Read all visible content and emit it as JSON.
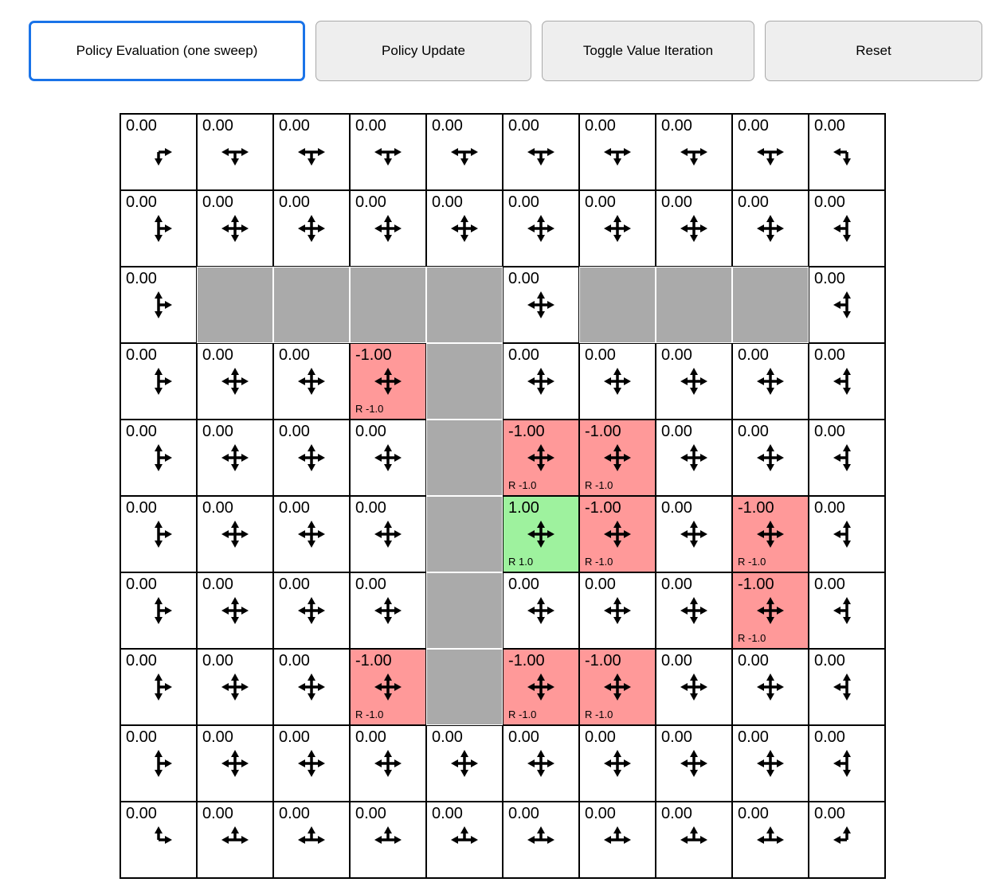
{
  "toolbar": {
    "buttons": [
      {
        "label": "Policy Evaluation (one sweep)",
        "active": true
      },
      {
        "label": "Policy Update",
        "active": false
      },
      {
        "label": "Toggle Value Iteration",
        "active": false
      },
      {
        "label": "Reset",
        "active": false
      }
    ]
  },
  "colors": {
    "accent": "#1a73e8",
    "wall": "#aaaaaa",
    "negative": "#ff9999",
    "positive": "#9ef29e",
    "arrow": "#000000"
  },
  "grid": {
    "rows": 10,
    "cols": 10,
    "cells": [
      [
        {
          "value": "0.00",
          "type": "normal",
          "dirs": "RD"
        },
        {
          "value": "0.00",
          "type": "normal",
          "dirs": "LRD"
        },
        {
          "value": "0.00",
          "type": "normal",
          "dirs": "LRD"
        },
        {
          "value": "0.00",
          "type": "normal",
          "dirs": "LRD"
        },
        {
          "value": "0.00",
          "type": "normal",
          "dirs": "LRD"
        },
        {
          "value": "0.00",
          "type": "normal",
          "dirs": "LRD"
        },
        {
          "value": "0.00",
          "type": "normal",
          "dirs": "LRD"
        },
        {
          "value": "0.00",
          "type": "normal",
          "dirs": "LRD"
        },
        {
          "value": "0.00",
          "type": "normal",
          "dirs": "LRD"
        },
        {
          "value": "0.00",
          "type": "normal",
          "dirs": "LD"
        }
      ],
      [
        {
          "value": "0.00",
          "type": "normal",
          "dirs": "URD"
        },
        {
          "value": "0.00",
          "type": "normal",
          "dirs": "UDLR"
        },
        {
          "value": "0.00",
          "type": "normal",
          "dirs": "UDLR"
        },
        {
          "value": "0.00",
          "type": "normal",
          "dirs": "UDLR"
        },
        {
          "value": "0.00",
          "type": "normal",
          "dirs": "UDLR"
        },
        {
          "value": "0.00",
          "type": "normal",
          "dirs": "UDLR"
        },
        {
          "value": "0.00",
          "type": "normal",
          "dirs": "UDLR"
        },
        {
          "value": "0.00",
          "type": "normal",
          "dirs": "UDLR"
        },
        {
          "value": "0.00",
          "type": "normal",
          "dirs": "UDLR"
        },
        {
          "value": "0.00",
          "type": "normal",
          "dirs": "ULD"
        }
      ],
      [
        {
          "value": "0.00",
          "type": "normal",
          "dirs": "URD"
        },
        {
          "type": "wall"
        },
        {
          "type": "wall"
        },
        {
          "type": "wall"
        },
        {
          "type": "wall"
        },
        {
          "value": "0.00",
          "type": "normal",
          "dirs": "UDLR"
        },
        {
          "type": "wall"
        },
        {
          "type": "wall"
        },
        {
          "type": "wall"
        },
        {
          "value": "0.00",
          "type": "normal",
          "dirs": "ULD"
        }
      ],
      [
        {
          "value": "0.00",
          "type": "normal",
          "dirs": "URD"
        },
        {
          "value": "0.00",
          "type": "normal",
          "dirs": "UDLR"
        },
        {
          "value": "0.00",
          "type": "normal",
          "dirs": "UDLR"
        },
        {
          "value": "-1.00",
          "type": "negative",
          "reward": "R -1.0",
          "dirs": "UDLR"
        },
        {
          "type": "wall"
        },
        {
          "value": "0.00",
          "type": "normal",
          "dirs": "UDLR"
        },
        {
          "value": "0.00",
          "type": "normal",
          "dirs": "UDLR"
        },
        {
          "value": "0.00",
          "type": "normal",
          "dirs": "UDLR"
        },
        {
          "value": "0.00",
          "type": "normal",
          "dirs": "UDLR"
        },
        {
          "value": "0.00",
          "type": "normal",
          "dirs": "ULD"
        }
      ],
      [
        {
          "value": "0.00",
          "type": "normal",
          "dirs": "URD"
        },
        {
          "value": "0.00",
          "type": "normal",
          "dirs": "UDLR"
        },
        {
          "value": "0.00",
          "type": "normal",
          "dirs": "UDLR"
        },
        {
          "value": "0.00",
          "type": "normal",
          "dirs": "UDLR"
        },
        {
          "type": "wall"
        },
        {
          "value": "-1.00",
          "type": "negative",
          "reward": "R -1.0",
          "dirs": "UDLR"
        },
        {
          "value": "-1.00",
          "type": "negative",
          "reward": "R -1.0",
          "dirs": "UDLR"
        },
        {
          "value": "0.00",
          "type": "normal",
          "dirs": "UDLR"
        },
        {
          "value": "0.00",
          "type": "normal",
          "dirs": "UDLR"
        },
        {
          "value": "0.00",
          "type": "normal",
          "dirs": "ULD"
        }
      ],
      [
        {
          "value": "0.00",
          "type": "normal",
          "dirs": "URD"
        },
        {
          "value": "0.00",
          "type": "normal",
          "dirs": "UDLR"
        },
        {
          "value": "0.00",
          "type": "normal",
          "dirs": "UDLR"
        },
        {
          "value": "0.00",
          "type": "normal",
          "dirs": "UDLR"
        },
        {
          "type": "wall"
        },
        {
          "value": "1.00",
          "type": "positive",
          "reward": "R 1.0",
          "dirs": "UDLR"
        },
        {
          "value": "-1.00",
          "type": "negative",
          "reward": "R -1.0",
          "dirs": "UDLR"
        },
        {
          "value": "0.00",
          "type": "normal",
          "dirs": "UDLR"
        },
        {
          "value": "-1.00",
          "type": "negative",
          "reward": "R -1.0",
          "dirs": "UDLR"
        },
        {
          "value": "0.00",
          "type": "normal",
          "dirs": "ULD"
        }
      ],
      [
        {
          "value": "0.00",
          "type": "normal",
          "dirs": "URD"
        },
        {
          "value": "0.00",
          "type": "normal",
          "dirs": "UDLR"
        },
        {
          "value": "0.00",
          "type": "normal",
          "dirs": "UDLR"
        },
        {
          "value": "0.00",
          "type": "normal",
          "dirs": "UDLR"
        },
        {
          "type": "wall"
        },
        {
          "value": "0.00",
          "type": "normal",
          "dirs": "UDLR"
        },
        {
          "value": "0.00",
          "type": "normal",
          "dirs": "UDLR"
        },
        {
          "value": "0.00",
          "type": "normal",
          "dirs": "UDLR"
        },
        {
          "value": "-1.00",
          "type": "negative",
          "reward": "R -1.0",
          "dirs": "UDLR"
        },
        {
          "value": "0.00",
          "type": "normal",
          "dirs": "ULD"
        }
      ],
      [
        {
          "value": "0.00",
          "type": "normal",
          "dirs": "URD"
        },
        {
          "value": "0.00",
          "type": "normal",
          "dirs": "UDLR"
        },
        {
          "value": "0.00",
          "type": "normal",
          "dirs": "UDLR"
        },
        {
          "value": "-1.00",
          "type": "negative",
          "reward": "R -1.0",
          "dirs": "UDLR"
        },
        {
          "type": "wall"
        },
        {
          "value": "-1.00",
          "type": "negative",
          "reward": "R -1.0",
          "dirs": "UDLR"
        },
        {
          "value": "-1.00",
          "type": "negative",
          "reward": "R -1.0",
          "dirs": "UDLR"
        },
        {
          "value": "0.00",
          "type": "normal",
          "dirs": "UDLR"
        },
        {
          "value": "0.00",
          "type": "normal",
          "dirs": "UDLR"
        },
        {
          "value": "0.00",
          "type": "normal",
          "dirs": "ULD"
        }
      ],
      [
        {
          "value": "0.00",
          "type": "normal",
          "dirs": "URD"
        },
        {
          "value": "0.00",
          "type": "normal",
          "dirs": "UDLR"
        },
        {
          "value": "0.00",
          "type": "normal",
          "dirs": "UDLR"
        },
        {
          "value": "0.00",
          "type": "normal",
          "dirs": "UDLR"
        },
        {
          "value": "0.00",
          "type": "normal",
          "dirs": "UDLR"
        },
        {
          "value": "0.00",
          "type": "normal",
          "dirs": "UDLR"
        },
        {
          "value": "0.00",
          "type": "normal",
          "dirs": "UDLR"
        },
        {
          "value": "0.00",
          "type": "normal",
          "dirs": "UDLR"
        },
        {
          "value": "0.00",
          "type": "normal",
          "dirs": "UDLR"
        },
        {
          "value": "0.00",
          "type": "normal",
          "dirs": "ULD"
        }
      ],
      [
        {
          "value": "0.00",
          "type": "normal",
          "dirs": "UR"
        },
        {
          "value": "0.00",
          "type": "normal",
          "dirs": "ULR"
        },
        {
          "value": "0.00",
          "type": "normal",
          "dirs": "ULR"
        },
        {
          "value": "0.00",
          "type": "normal",
          "dirs": "ULR"
        },
        {
          "value": "0.00",
          "type": "normal",
          "dirs": "ULR"
        },
        {
          "value": "0.00",
          "type": "normal",
          "dirs": "ULR"
        },
        {
          "value": "0.00",
          "type": "normal",
          "dirs": "ULR"
        },
        {
          "value": "0.00",
          "type": "normal",
          "dirs": "ULR"
        },
        {
          "value": "0.00",
          "type": "normal",
          "dirs": "ULR"
        },
        {
          "value": "0.00",
          "type": "normal",
          "dirs": "UL"
        }
      ]
    ]
  }
}
